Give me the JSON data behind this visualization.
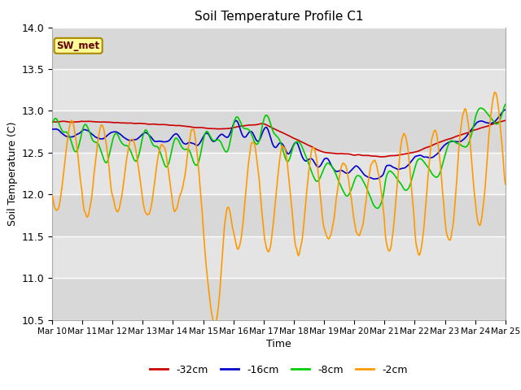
{
  "title": "Soil Temperature Profile C1",
  "xlabel": "Time",
  "ylabel": "Soil Temperature (C)",
  "ylim": [
    10.5,
    14.0
  ],
  "xlim": [
    0,
    15
  ],
  "x_tick_labels": [
    "Mar 10",
    "Mar 11",
    "Mar 12",
    "Mar 13",
    "Mar 14",
    "Mar 15",
    "Mar 16",
    "Mar 17",
    "Mar 18",
    "Mar 19",
    "Mar 20",
    "Mar 21",
    "Mar 22",
    "Mar 23",
    "Mar 24",
    "Mar 25"
  ],
  "yticks": [
    10.5,
    11.0,
    11.5,
    12.0,
    12.5,
    13.0,
    13.5,
    14.0
  ],
  "colors": {
    "-32cm": "#cc0000",
    "-16cm": "#0000cc",
    "-8cm": "#00cc00",
    "-2cm": "#ff9900"
  },
  "legend_label": "SW_met",
  "legend_box_facecolor": "#ffff99",
  "legend_box_edgecolor": "#aa8800",
  "band_colors": [
    "#d8d8d8",
    "#e8e8e8"
  ],
  "plot_bg": "#e8e8e8"
}
